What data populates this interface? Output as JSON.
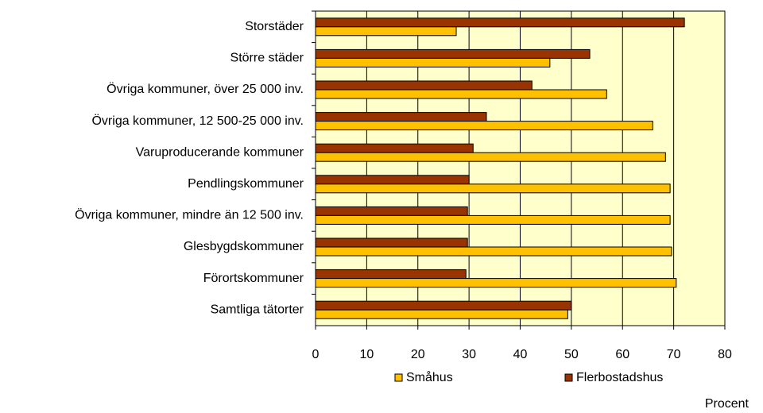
{
  "chart_data": {
    "type": "bar",
    "orientation": "horizontal",
    "categories": [
      "Storstäder",
      "Större städer",
      "Övriga kommuner, över 25 000 inv.",
      "Övriga kommuner, 12 500-25 000 inv.",
      "Varuproducerande kommuner",
      "Pendlingskommuner",
      "Övriga kommuner, mindre än 12 500 inv.",
      "Glesbygdskommuner",
      "Förortskommuner",
      "Samtliga tätorter"
    ],
    "series": [
      {
        "name": "Småhus",
        "color": "#ffc000",
        "values": [
          27.5,
          45.8,
          56.9,
          65.9,
          68.4,
          69.3,
          69.3,
          69.6,
          70.5,
          49.3
        ]
      },
      {
        "name": "Flerbostadshus",
        "color": "#993300",
        "values": [
          72.1,
          53.6,
          42.3,
          33.4,
          30.8,
          30.0,
          29.7,
          29.7,
          29.4,
          50.0
        ]
      }
    ],
    "xlim": [
      0,
      80
    ],
    "xticks": [
      0,
      10,
      20,
      30,
      40,
      50,
      60,
      70,
      80
    ],
    "xlabel": "Procent",
    "grid": true,
    "legend": "bottom",
    "plot_background": "#ffffcc"
  }
}
